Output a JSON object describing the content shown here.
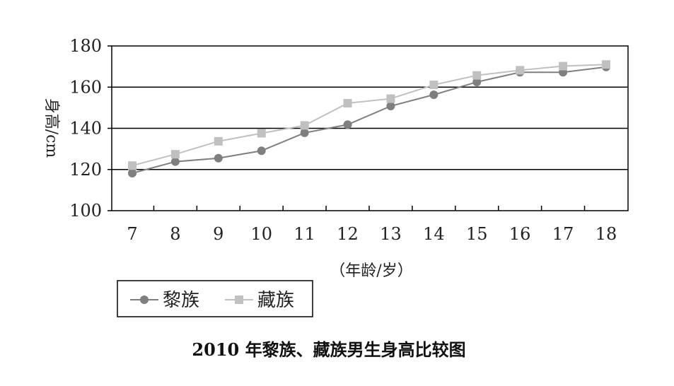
{
  "chart_data": {
    "type": "line",
    "title": "2010 年黎族、藏族男生身高比较图",
    "xlabel": "（年龄/岁）",
    "ylabel": "身高/cm",
    "x": [
      7,
      8,
      9,
      10,
      11,
      12,
      13,
      14,
      15,
      16,
      17,
      18
    ],
    "x_tick_labels": [
      "7",
      "8",
      "9",
      "10",
      "11",
      "12",
      "13",
      "14",
      "15",
      "16",
      "17",
      "18"
    ],
    "y_tick_labels": [
      "100",
      "120",
      "140",
      "160",
      "180"
    ],
    "ylim": [
      100,
      180
    ],
    "y_ticks": [
      100,
      120,
      140,
      160,
      180
    ],
    "grid": "horizontal",
    "legend_position": "bottom-left",
    "series": [
      {
        "name": "黎族",
        "marker": "circle",
        "color": "#7f7f7f",
        "values": [
          118.2,
          123.8,
          125.5,
          129.1,
          137.8,
          141.8,
          150.8,
          156.3,
          162.5,
          167.2,
          167.2,
          169.8
        ]
      },
      {
        "name": "藏族",
        "marker": "square",
        "color": "#c0c0c0",
        "values": [
          121.9,
          127.4,
          133.7,
          137.6,
          141.4,
          152.2,
          154.4,
          161.1,
          165.7,
          168.2,
          170.2,
          171.0
        ]
      }
    ]
  }
}
